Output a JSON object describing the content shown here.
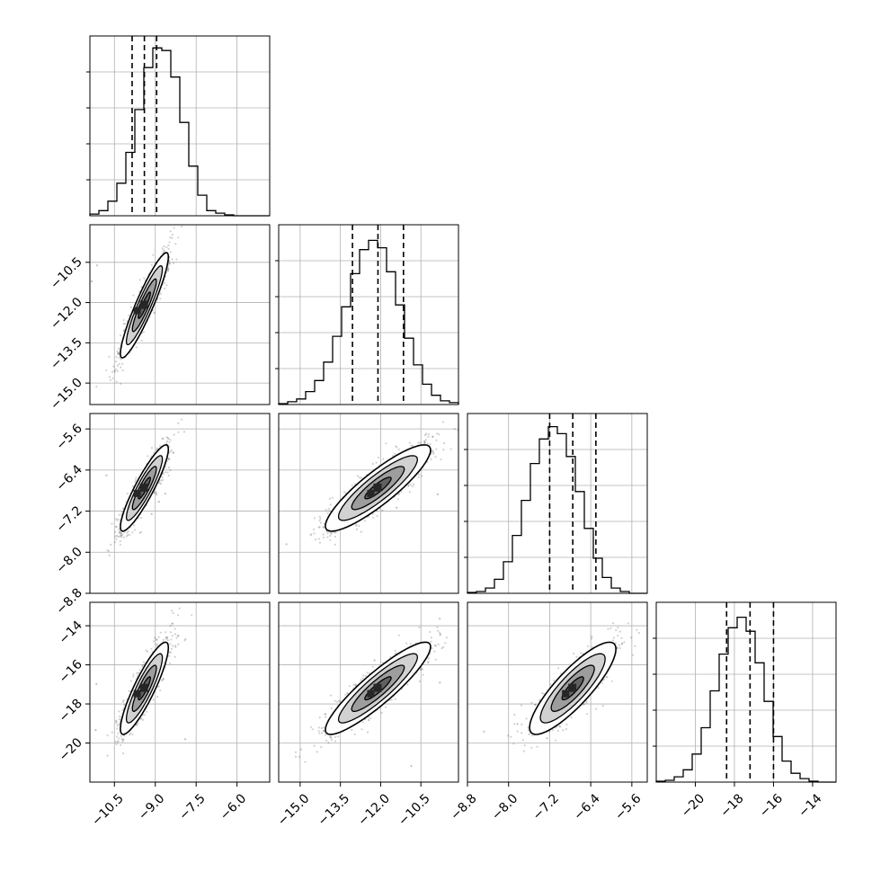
{
  "chart_data": {
    "type": "corner",
    "n_params": 4,
    "colors": {
      "ink": "#000000",
      "grid": "#b0b0b0",
      "background": "#ffffff",
      "contour_fills": [
        "#ffffff",
        "#cfcfcf",
        "#9a9a9a",
        "#5e5e5e",
        "#262626"
      ]
    },
    "grid": true,
    "params": [
      {
        "index": 0,
        "mean": -9.4,
        "sd": 0.44,
        "range": [
          -11.4,
          -4.8
        ],
        "ticks": [
          -10.5,
          -9.0,
          -7.5,
          -6.0
        ],
        "tick_labels": [
          "−10.5",
          "−9.0",
          "−7.5",
          "−6.0"
        ],
        "quantiles": [
          -9.85,
          -9.4,
          -8.95
        ]
      },
      {
        "index": 1,
        "mean": -12.1,
        "sd": 0.98,
        "range": [
          -15.8,
          -9.1
        ],
        "ticks": [
          -15.0,
          -13.5,
          -12.0,
          -10.5
        ],
        "tick_labels": [
          "−15.0",
          "−13.5",
          "−12.0",
          "−10.5"
        ],
        "quantiles": [
          -13.05,
          -12.1,
          -11.15
        ]
      },
      {
        "index": 2,
        "mean": -6.75,
        "sd": 0.42,
        "range": [
          -8.8,
          -5.3
        ],
        "ticks": [
          -8.8,
          -8.0,
          -7.2,
          -6.4,
          -5.6
        ],
        "tick_labels": [
          "−8.8",
          "−8.0",
          "−7.2",
          "−6.4",
          "−5.6"
        ],
        "quantiles": [
          -7.2,
          -6.75,
          -6.3
        ]
      },
      {
        "index": 3,
        "mean": -17.2,
        "sd": 1.18,
        "range": [
          -22.0,
          -12.8
        ],
        "ticks": [
          -20,
          -18,
          -16,
          -14
        ],
        "tick_labels": [
          "−20",
          "−18",
          "−16",
          "−14"
        ],
        "quantiles": [
          -18.4,
          -17.2,
          -16.0
        ]
      }
    ],
    "diagonal": [
      {
        "param": 0,
        "counts": [
          2,
          6,
          17,
          38,
          74,
          124,
          173,
          196,
          193,
          162,
          109,
          58,
          24,
          6,
          3,
          1,
          0,
          0,
          0,
          0
        ],
        "ylim": [
          0,
          210
        ]
      },
      {
        "param": 1,
        "counts": [
          1,
          3,
          6,
          14,
          26,
          46,
          74,
          106,
          142,
          168,
          178,
          170,
          144,
          108,
          72,
          43,
          22,
          10,
          4,
          2
        ],
        "ylim": [
          0,
          195
        ]
      },
      {
        "param": 2,
        "counts": [
          1,
          2,
          6,
          16,
          36,
          66,
          106,
          148,
          176,
          190,
          182,
          156,
          116,
          74,
          40,
          18,
          6,
          2,
          0,
          0
        ],
        "ylim": [
          0,
          205
        ]
      },
      {
        "param": 3,
        "counts": [
          1,
          2,
          6,
          14,
          32,
          62,
          104,
          146,
          176,
          188,
          172,
          136,
          92,
          52,
          24,
          10,
          4,
          1,
          0,
          0
        ],
        "ylim": [
          0,
          205
        ]
      }
    ],
    "pairs": [
      {
        "x_param": 0,
        "y_param": 1,
        "correlation": 0.92
      },
      {
        "x_param": 0,
        "y_param": 2,
        "correlation": 0.9
      },
      {
        "x_param": 1,
        "y_param": 2,
        "correlation": 0.88
      },
      {
        "x_param": 0,
        "y_param": 3,
        "correlation": 0.88
      },
      {
        "x_param": 1,
        "y_param": 3,
        "correlation": 0.9
      },
      {
        "x_param": 2,
        "y_param": 3,
        "correlation": 0.85
      }
    ],
    "contour_levels_sigma": [
      0.5,
      1.0,
      1.5,
      2.0
    ]
  }
}
